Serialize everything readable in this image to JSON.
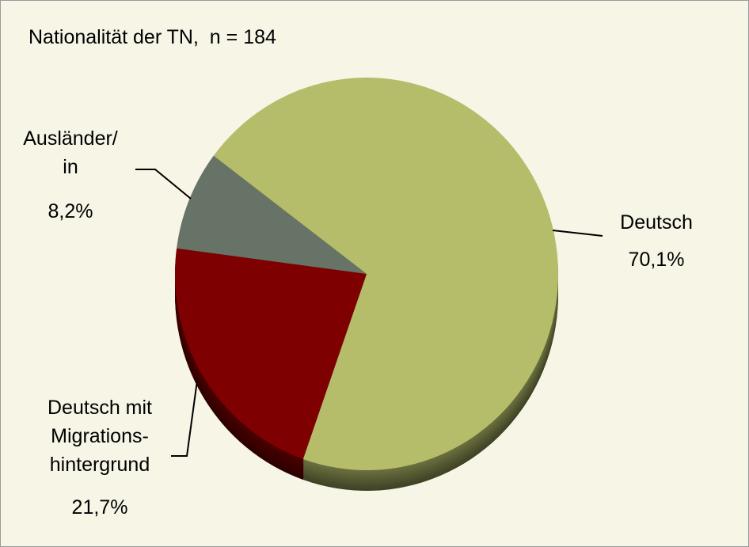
{
  "chart_data": {
    "type": "pie",
    "title": "Nationalität der TN,  n = 184",
    "categories": [
      "Deutsch",
      "Deutsch mit\nMigrations-\nhintergrund",
      "Ausländer/\nin"
    ],
    "values": [
      70.1,
      21.7,
      8.2
    ],
    "value_labels": [
      "70,1%",
      "21,7%",
      "8,2%"
    ],
    "colors": [
      "#b5bd6a",
      "#7f0000",
      "#667366"
    ]
  }
}
